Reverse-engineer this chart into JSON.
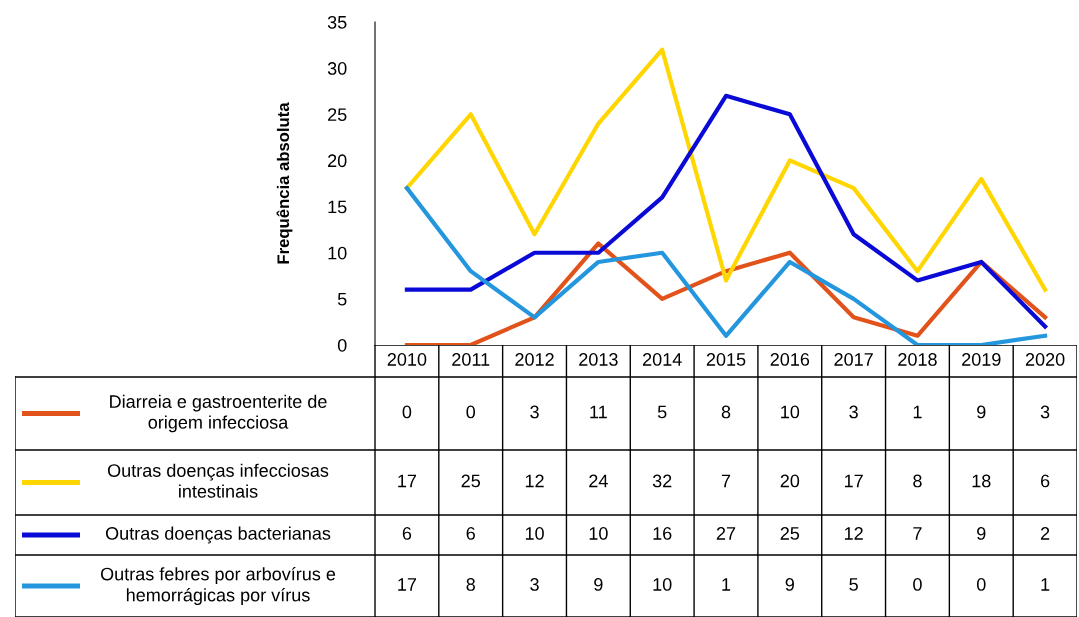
{
  "chart_data": {
    "type": "line",
    "ylabel": "Frequência absoluta",
    "categories": [
      "2010",
      "2011",
      "2012",
      "2013",
      "2014",
      "2015",
      "2016",
      "2017",
      "2018",
      "2019",
      "2020"
    ],
    "series": [
      {
        "name": "Diarreia e gastroenterite de origem infecciosa",
        "color": "#e2531b",
        "values": [
          0,
          0,
          3,
          11,
          5,
          8,
          10,
          3,
          1,
          9,
          3
        ]
      },
      {
        "name": "Outras doenças infecciosas intestinais",
        "color": "#ffd600",
        "values": [
          17,
          25,
          12,
          24,
          32,
          7,
          20,
          17,
          8,
          18,
          6
        ]
      },
      {
        "name": "Outras doenças bacterianas",
        "color": "#0a0ad6",
        "values": [
          6,
          6,
          10,
          10,
          16,
          27,
          25,
          12,
          7,
          9,
          2
        ]
      },
      {
        "name": "Outras febres por arbovírus e hemorrágicas por vírus",
        "color": "#2396dd",
        "values": [
          17,
          8,
          3,
          9,
          10,
          1,
          9,
          5,
          0,
          0,
          1
        ]
      }
    ],
    "ylim": [
      0,
      35
    ],
    "yticks": [
      0,
      5,
      10,
      15,
      20,
      25,
      30,
      35
    ],
    "grid": false,
    "legend": "bottom",
    "data_labels": true,
    "marker": "none",
    "line_style": "solid"
  }
}
